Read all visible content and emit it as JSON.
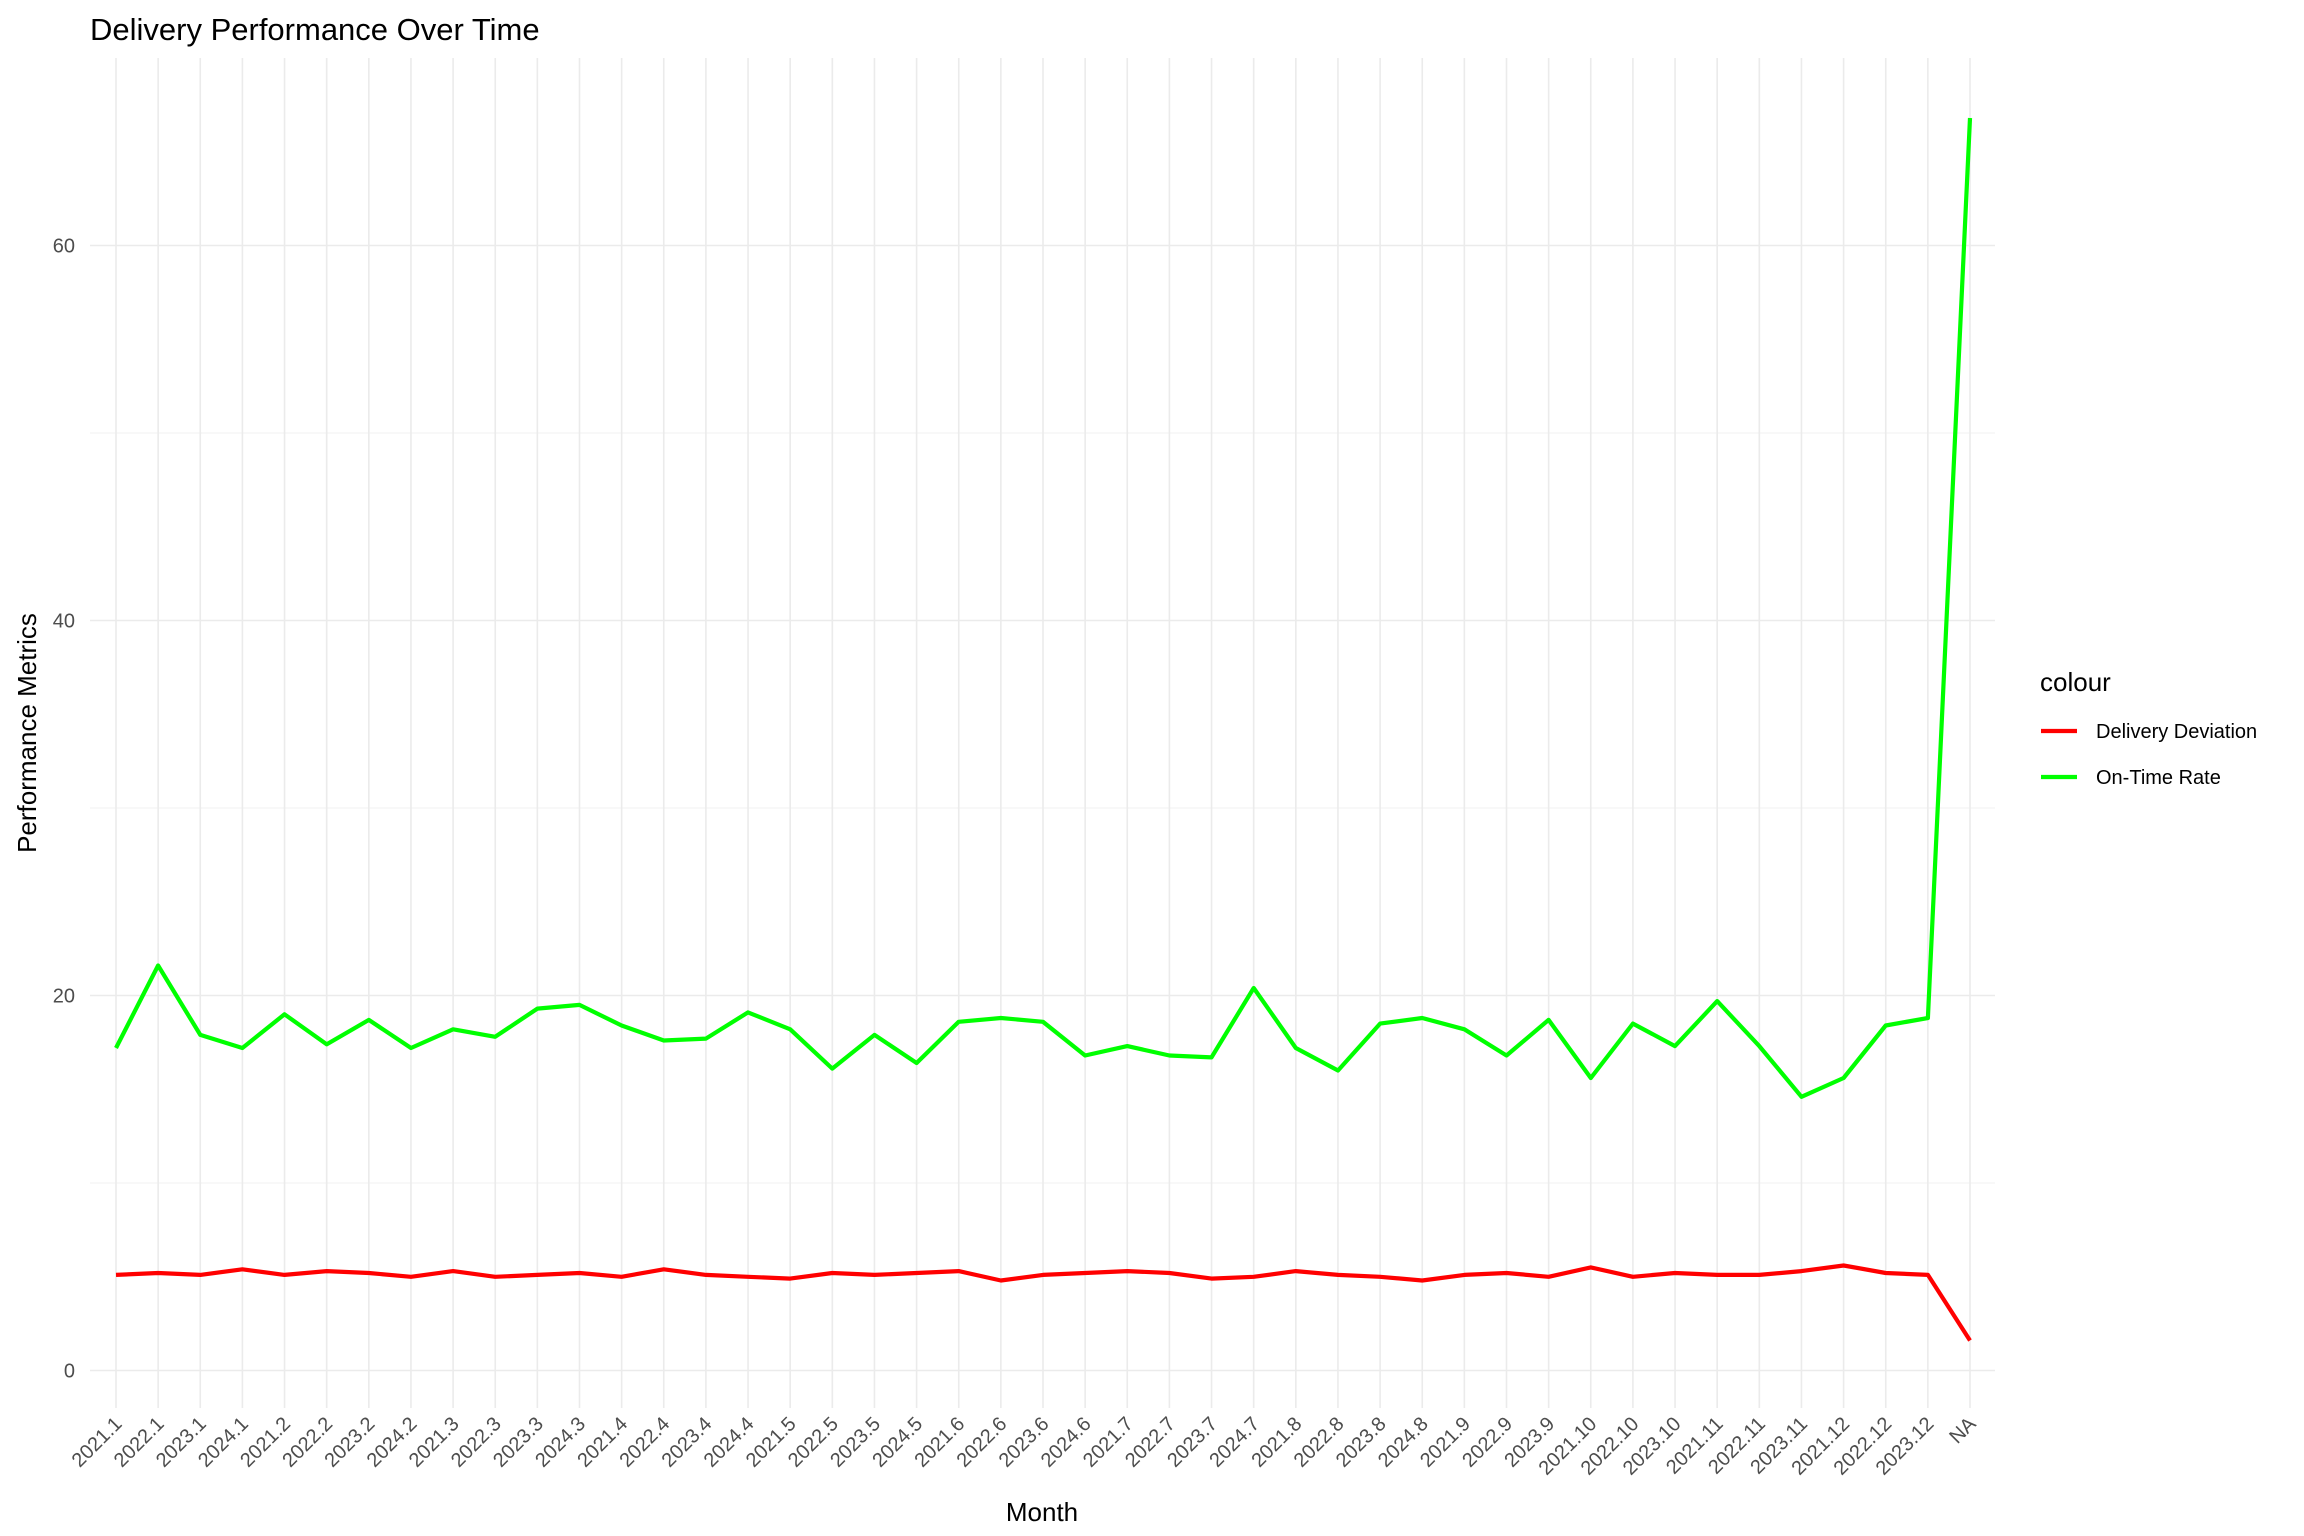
{
  "chart_data": {
    "type": "line",
    "title": "Delivery Performance Over Time",
    "xlabel": "Month",
    "ylabel": "Performance Metrics",
    "categories": [
      "2021.1",
      "2022.1",
      "2023.1",
      "2024.1",
      "2021.2",
      "2022.2",
      "2023.2",
      "2024.2",
      "2021.3",
      "2022.3",
      "2023.3",
      "2024.3",
      "2021.4",
      "2022.4",
      "2023.4",
      "2024.4",
      "2021.5",
      "2022.5",
      "2023.5",
      "2024.5",
      "2021.6",
      "2022.6",
      "2023.6",
      "2024.6",
      "2021.7",
      "2022.7",
      "2023.7",
      "2024.7",
      "2021.8",
      "2022.8",
      "2023.8",
      "2024.8",
      "2021.9",
      "2022.9",
      "2023.9",
      "2021.10",
      "2022.10",
      "2023.10",
      "2021.11",
      "2022.11",
      "2023.11",
      "2021.12",
      "2022.12",
      "2023.12",
      "NA"
    ],
    "ylim": [
      -2,
      70
    ],
    "yticks": [
      0,
      20,
      40,
      60
    ],
    "grid": true,
    "legend": {
      "title": "colour",
      "position": "right"
    },
    "series": [
      {
        "name": "Delivery Deviation",
        "color": "#ff0000",
        "values": [
          5.1,
          5.2,
          5.1,
          5.4,
          5.1,
          5.3,
          5.2,
          5.0,
          5.3,
          5.0,
          5.1,
          5.2,
          5.0,
          5.4,
          5.1,
          5.0,
          4.9,
          5.2,
          5.1,
          5.2,
          5.3,
          4.8,
          5.1,
          5.2,
          5.3,
          5.2,
          4.9,
          5.0,
          5.3,
          5.1,
          5.0,
          4.8,
          5.1,
          5.2,
          5.0,
          5.5,
          5.0,
          5.2,
          5.1,
          5.1,
          5.3,
          5.6,
          5.2,
          5.1,
          1.6
        ]
      },
      {
        "name": "On-Time Rate",
        "color": "#00ff00",
        "values": [
          17.2,
          21.6,
          17.9,
          17.2,
          19.0,
          17.4,
          18.7,
          17.2,
          18.2,
          17.8,
          19.3,
          19.5,
          18.4,
          17.6,
          17.7,
          19.1,
          18.2,
          16.1,
          17.9,
          16.4,
          18.6,
          18.8,
          18.6,
          16.8,
          17.3,
          16.8,
          16.7,
          20.4,
          17.2,
          16.0,
          18.5,
          18.8,
          18.2,
          16.8,
          18.7,
          15.6,
          18.5,
          17.3,
          19.7,
          17.3,
          14.6,
          15.6,
          18.4,
          18.8,
          66.8
        ]
      }
    ]
  }
}
